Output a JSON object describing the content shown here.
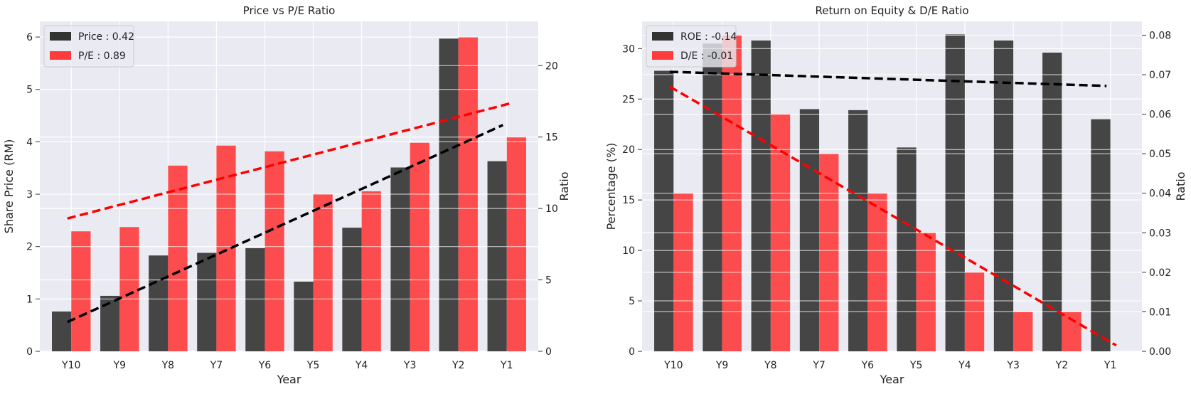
{
  "chart_data": [
    {
      "type": "bar",
      "title": "Price vs P/E Ratio",
      "xlabel": "Year",
      "ylabel": "Share Price (RM)",
      "y2label": "Ratio",
      "categories": [
        "Y10",
        "Y9",
        "Y8",
        "Y7",
        "Y6",
        "Y5",
        "Y4",
        "Y3",
        "Y2",
        "Y1"
      ],
      "ylim": [
        0,
        6.3
      ],
      "y2lim": [
        0,
        23.1
      ],
      "yticks": [
        0,
        1,
        2,
        3,
        4,
        5,
        6
      ],
      "y2ticks": [
        0,
        5,
        10,
        15,
        20
      ],
      "grid": true,
      "legend_position": "top-left",
      "series": [
        {
          "name": "Price : 0.42",
          "axis": "left",
          "color": "#333333",
          "values": [
            0.76,
            1.06,
            1.83,
            1.88,
            1.97,
            1.33,
            2.36,
            3.51,
            5.97,
            3.63
          ]
        },
        {
          "name": "P/E : 0.89",
          "axis": "right",
          "color": "#ff3b3b",
          "values": [
            8.4,
            8.7,
            13.0,
            14.4,
            14.0,
            11.0,
            11.2,
            14.6,
            22.0,
            15.0
          ]
        }
      ],
      "trendlines": [
        {
          "series": "Price : 0.42",
          "axis": "left",
          "color": "#000000",
          "from": 0.56,
          "to": 4.32
        },
        {
          "series": "P/E : 0.89",
          "axis": "right",
          "color": "#ff0000",
          "from": 9.3,
          "to": 17.4
        }
      ]
    },
    {
      "type": "bar",
      "title": "Return on Equity & D/E Ratio",
      "xlabel": "Year",
      "ylabel": "Percentage (%)",
      "y2label": "Ratio",
      "categories": [
        "Y10",
        "Y9",
        "Y8",
        "Y7",
        "Y6",
        "Y5",
        "Y4",
        "Y3",
        "Y2",
        "Y1"
      ],
      "ylim": [
        0,
        32.7
      ],
      "y2lim": [
        0,
        0.0835
      ],
      "yticks": [
        0,
        5,
        10,
        15,
        20,
        25,
        30
      ],
      "y2ticks": [
        "0.00",
        "0.01",
        "0.02",
        "0.03",
        "0.04",
        "0.05",
        "0.06",
        "0.07",
        "0.08"
      ],
      "grid": true,
      "legend_position": "top-left",
      "series": [
        {
          "name": "ROE : -0.14",
          "axis": "left",
          "color": "#333333",
          "values": [
            27.8,
            30.5,
            30.8,
            24.0,
            23.9,
            20.2,
            31.4,
            30.8,
            29.6,
            23.0
          ]
        },
        {
          "name": "D/E : -0.01",
          "axis": "right",
          "color": "#ff3b3b",
          "values": [
            0.04,
            0.08,
            0.06,
            0.05,
            0.04,
            0.03,
            0.02,
            0.01,
            0.01,
            0.0
          ]
        }
      ],
      "trendlines": [
        {
          "series": "ROE : -0.14",
          "axis": "left",
          "color": "#000000",
          "from": 27.7,
          "to": 26.3
        },
        {
          "series": "D/E : -0.01",
          "axis": "right",
          "color": "#ff0000",
          "from": 0.067,
          "to": 0.0015
        }
      ]
    }
  ]
}
